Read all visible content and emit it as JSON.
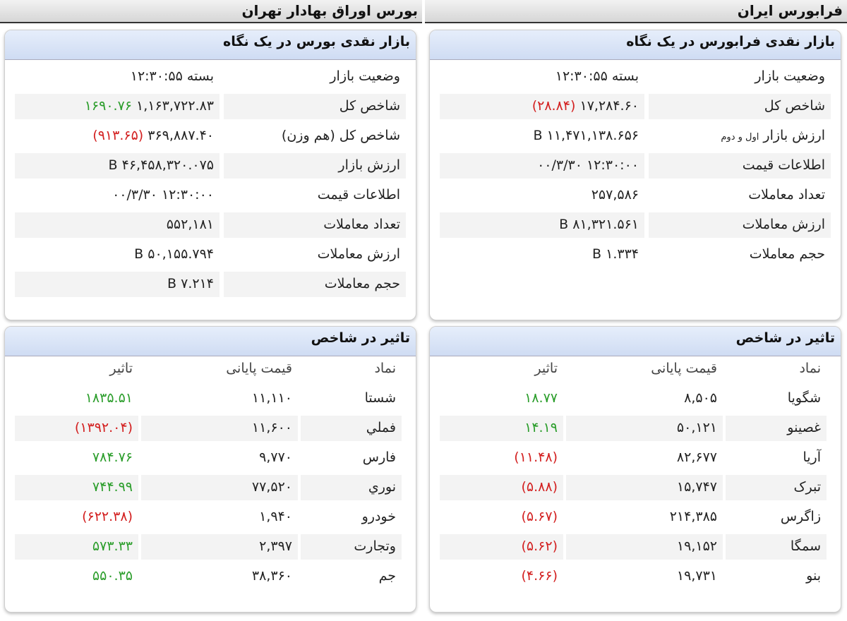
{
  "sections": [
    {
      "title": "بورس اوراق بهادار تهران",
      "summary": {
        "title": "بازار نقدی بورس در یک نگاه",
        "rows": [
          {
            "label": "وضعیت بازار",
            "value": "بسته ۱۲:۳۰:۵۵"
          },
          {
            "label": "شاخص کل",
            "value": "۱,۱۶۳,۷۲۲.۸۳",
            "change": "۱۶۹۰.۷۶"
          },
          {
            "label": "شاخص کل (هم وزن)",
            "value": "۳۶۹,۸۸۷.۴۰",
            "change": "(۹۱۳.۶۵)"
          },
          {
            "label": "ارزش بازار",
            "value": "۴۶,۴۵۸,۳۲۰.۰۷۵ B"
          },
          {
            "label": "اطلاعات قیمت",
            "value": "۱۲:۳۰:۰۰ ۰۰/۳/۳۰"
          },
          {
            "label": "تعداد معاملات",
            "value": "۵۵۲,۱۸۱"
          },
          {
            "label": "ارزش معاملات",
            "value": "۵۰,۱۵۵.۷۹۴ B"
          },
          {
            "label": "حجم معاملات",
            "value": "۷.۲۱۴ B"
          }
        ]
      },
      "impact": {
        "title": "تاثیر در شاخص",
        "columns": [
          "نماد",
          "قیمت پایانی",
          "تاثیر"
        ],
        "rows": [
          [
            "شستا",
            "۱۱,۱۱۰",
            "۱۸۳۵.۵۱"
          ],
          [
            "فملي",
            "۱۱,۶۰۰",
            "(۱۳۹۲.۰۴)"
          ],
          [
            "فارس",
            "۹,۷۷۰",
            "۷۸۴.۷۶"
          ],
          [
            "نوري",
            "۷۷,۵۲۰",
            "۷۴۴.۹۹"
          ],
          [
            "خودرو",
            "۱,۹۴۰",
            "(۶۲۲.۳۸)"
          ],
          [
            "وتجارت",
            "۲,۳۹۷",
            "۵۷۳.۳۳"
          ],
          [
            "جم",
            "۳۸,۳۶۰",
            "۵۵۰.۳۵"
          ]
        ]
      }
    },
    {
      "title": "فرابورس ایران",
      "summary": {
        "title": "بازار نقدی فرابورس در یک نگاه",
        "rows": [
          {
            "label": "وضعیت بازار",
            "value": "بسته ۱۲:۳۰:۵۵"
          },
          {
            "label": "شاخص کل",
            "value": "۱۷,۲۸۴.۶۰",
            "change": "(۲۸.۸۴)"
          },
          {
            "label": "ارزش بازار",
            "note": "اول و دوم",
            "value": "۱۱,۴۷۱,۱۳۸.۶۵۶ B"
          },
          {
            "label": "اطلاعات قیمت",
            "value": "۱۲:۳۰:۰۰ ۰۰/۳/۳۰"
          },
          {
            "label": "تعداد معاملات",
            "value": "۲۵۷,۵۸۶"
          },
          {
            "label": "ارزش معاملات",
            "value": "۸۱,۳۲۱.۵۶۱ B"
          },
          {
            "label": "حجم معاملات",
            "value": "۱.۳۳۴ B"
          }
        ]
      },
      "impact": {
        "title": "تاثیر در شاخص",
        "columns": [
          "نماد",
          "قیمت پایانی",
          "تاثیر"
        ],
        "rows": [
          [
            "شگویا",
            "۸,۵۰۵",
            "۱۸.۷۷"
          ],
          [
            "غصینو",
            "۵۰,۱۲۱",
            "۱۴.۱۹"
          ],
          [
            "آریا",
            "۸۲,۶۷۷",
            "(۱۱.۴۸)"
          ],
          [
            "تبرک",
            "۱۵,۷۴۷",
            "(۵.۸۸)"
          ],
          [
            "زاگرس",
            "۲۱۴,۳۸۵",
            "(۵.۶۷)"
          ],
          [
            "سمگا",
            "۱۹,۱۵۲",
            "(۵.۶۲)"
          ],
          [
            "بنو",
            "۱۹,۷۳۱",
            "(۴.۶۶)"
          ]
        ]
      }
    }
  ]
}
